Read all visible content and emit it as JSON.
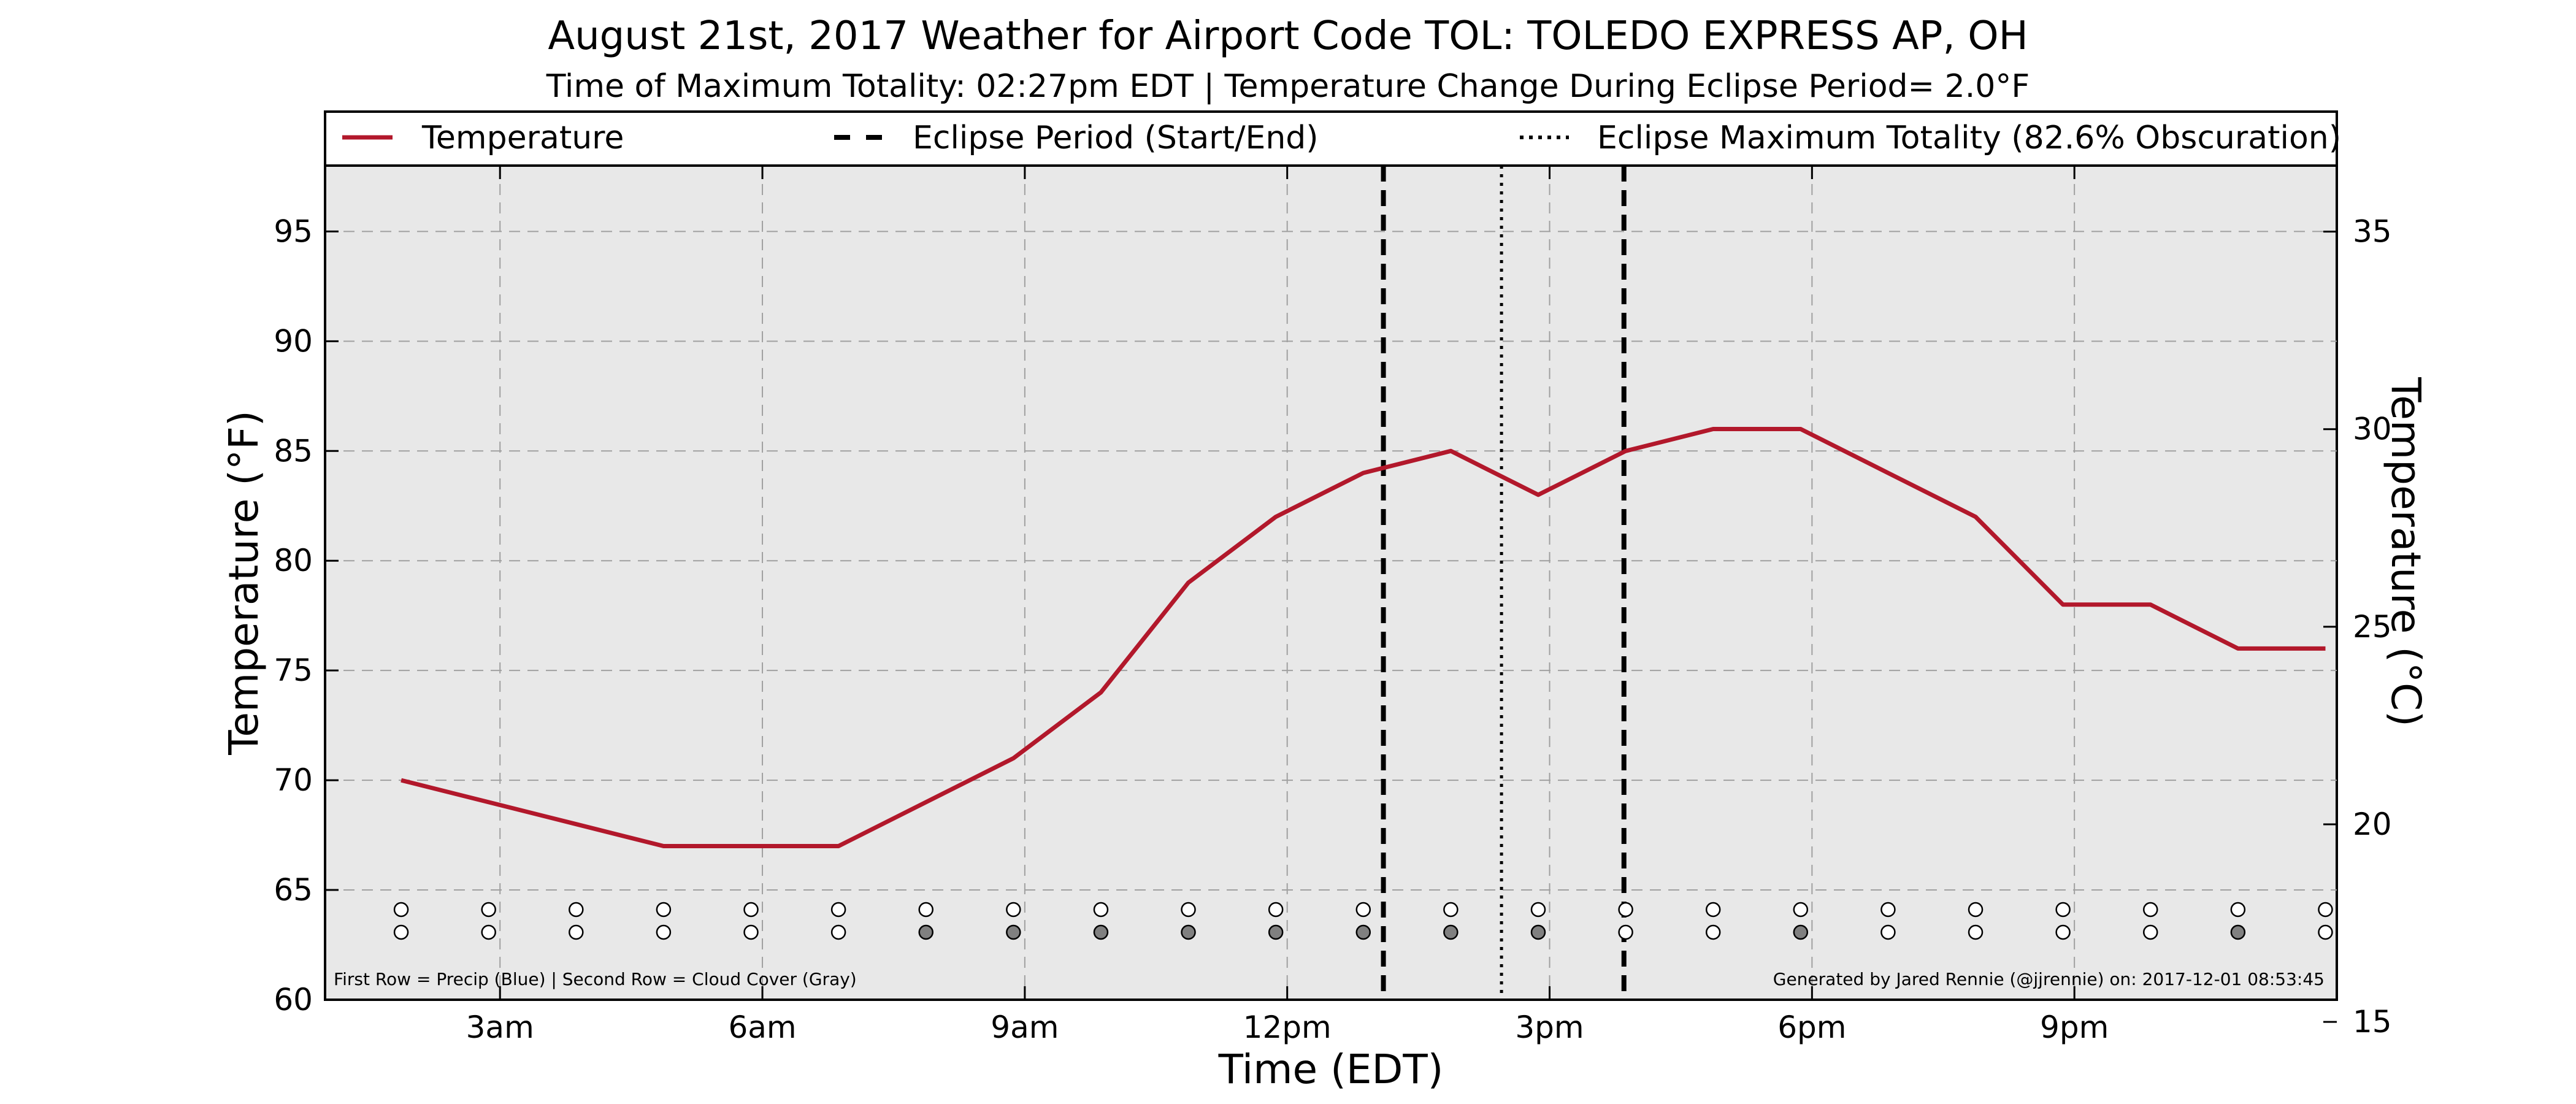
{
  "chart_data": {
    "type": "line",
    "title": "August 21st, 2017 Weather for Airport Code TOL: TOLEDO EXPRESS AP, OH",
    "subtitle": "Time of Maximum Totality: 02:27pm EDT | Temperature Change During Eclipse Period= 2.0°F",
    "xlabel": "Time (EDT)",
    "ylabel": "Temperature (°F)",
    "ylabel_right": "Temperature (°C)",
    "xlim": [
      1.0,
      24.0
    ],
    "ylim": [
      60,
      98
    ],
    "ylim_right": [
      15.56,
      36.67
    ],
    "x_ticks": [
      {
        "value": 3,
        "label": "3am"
      },
      {
        "value": 6,
        "label": "6am"
      },
      {
        "value": 9,
        "label": "9am"
      },
      {
        "value": 12,
        "label": "12pm"
      },
      {
        "value": 15,
        "label": "3pm"
      },
      {
        "value": 18,
        "label": "6pm"
      },
      {
        "value": 21,
        "label": "9pm"
      }
    ],
    "y_ticks": [
      60,
      65,
      70,
      75,
      80,
      85,
      90,
      95
    ],
    "y_ticks_right": [
      15,
      20,
      25,
      30,
      35
    ],
    "grid": true,
    "legend_position": "top",
    "legend": [
      {
        "label": "Temperature",
        "style": "solid"
      },
      {
        "label": "Eclipse Period (Start/End)",
        "style": "dashed"
      },
      {
        "label": "Eclipse Maximum Totality (82.6% Obscuration)",
        "style": "dotted"
      }
    ],
    "series": [
      {
        "name": "Temperature",
        "color": "#b2182b",
        "x": [
          1.87,
          2.87,
          3.87,
          4.87,
          5.87,
          6.87,
          7.87,
          8.87,
          9.87,
          10.87,
          11.87,
          12.87,
          13.87,
          14.87,
          15.87,
          16.87,
          17.87,
          18.87,
          19.87,
          20.87,
          21.87,
          22.87,
          23.87
        ],
        "y": [
          70,
          69,
          68,
          67,
          67,
          67,
          69,
          71,
          74,
          79,
          82,
          84,
          85,
          83,
          85,
          86,
          86,
          84,
          82,
          78,
          78,
          76,
          76
        ]
      }
    ],
    "eclipse_start": 13.1,
    "eclipse_max": 14.45,
    "eclipse_end": 15.85,
    "precip_row": {
      "x": [
        1.87,
        2.87,
        3.87,
        4.87,
        5.87,
        6.87,
        7.87,
        8.87,
        9.87,
        10.87,
        11.87,
        12.87,
        13.87,
        14.87,
        15.87,
        16.87,
        17.87,
        18.87,
        19.87,
        20.87,
        21.87,
        22.87,
        23.87
      ],
      "filled": [
        false,
        false,
        false,
        false,
        false,
        false,
        false,
        false,
        false,
        false,
        false,
        false,
        false,
        false,
        false,
        false,
        false,
        false,
        false,
        false,
        false,
        false,
        false
      ]
    },
    "cloud_row": {
      "x": [
        1.87,
        2.87,
        3.87,
        4.87,
        5.87,
        6.87,
        7.87,
        8.87,
        9.87,
        10.87,
        11.87,
        12.87,
        13.87,
        14.87,
        15.87,
        16.87,
        17.87,
        18.87,
        19.87,
        20.87,
        21.87,
        22.87,
        23.87
      ],
      "filled": [
        false,
        false,
        false,
        false,
        false,
        false,
        true,
        true,
        true,
        true,
        true,
        true,
        true,
        true,
        false,
        false,
        true,
        false,
        false,
        false,
        false,
        true,
        false
      ]
    },
    "notes": {
      "left": "First Row = Precip (Blue) | Second Row = Cloud Cover (Gray)",
      "right": "Generated by Jared Rennie (@jjrennie) on: 2017-12-01 08:53:45"
    },
    "colors": {
      "temperature": "#b2182b",
      "plot_background": "#e8e8e8",
      "grid": "#a0a0a0",
      "cloud_fill": "#808080",
      "marker_empty": "#ffffff"
    }
  }
}
